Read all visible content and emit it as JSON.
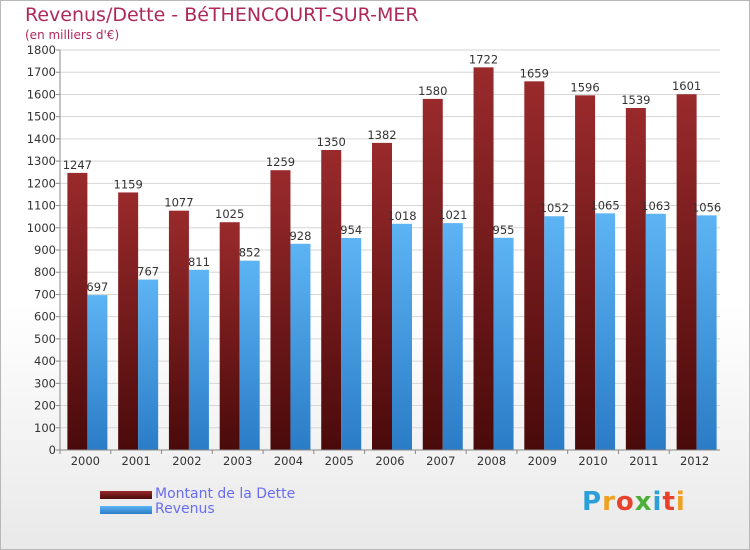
{
  "colors": {
    "dette": "#8a2020",
    "revenus": "#4aa2e8",
    "title": "#b0285a",
    "legend_text": "#6a6cf0"
  },
  "chart_data": {
    "type": "bar",
    "title": "Revenus/Dette - BéTHENCOURT-SUR-MER",
    "subtitle": "(en milliers d'€)",
    "categories": [
      "2000",
      "2001",
      "2002",
      "2003",
      "2004",
      "2005",
      "2006",
      "2007",
      "2008",
      "2009",
      "2010",
      "2011",
      "2012"
    ],
    "series": [
      {
        "name": "Montant de la Dette",
        "values": [
          1247,
          1159,
          1077,
          1025,
          1259,
          1350,
          1382,
          1580,
          1722,
          1659,
          1596,
          1539,
          1601
        ]
      },
      {
        "name": "Revenus",
        "values": [
          697,
          767,
          811,
          852,
          928,
          954,
          1018,
          1021,
          955,
          1052,
          1065,
          1063,
          1056
        ]
      }
    ],
    "ylim": [
      0,
      1800
    ],
    "yticks": [
      0,
      100,
      200,
      300,
      400,
      500,
      600,
      700,
      800,
      900,
      1000,
      1100,
      1200,
      1300,
      1400,
      1500,
      1600,
      1700,
      1800
    ],
    "grid": true,
    "legend_position": "bottom-left"
  },
  "logo": {
    "letters": [
      "P",
      "r",
      "o",
      "x",
      "i",
      "t",
      "i"
    ],
    "colors": [
      "#2a9fd8",
      "#f0a020",
      "#e8412c",
      "#4caf3a",
      "#2a9fd8",
      "#e8412c",
      "#f0a020"
    ]
  }
}
